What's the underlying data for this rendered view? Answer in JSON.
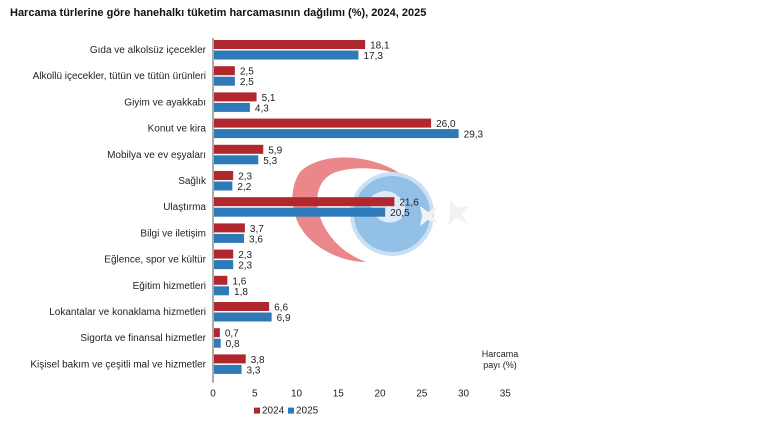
{
  "header": {
    "title": "Harcama türlerine göre hanehalkı tüketim harcamasının dağılımı (%), 2024, 2025"
  },
  "chart_data": {
    "type": "bar",
    "orientation": "horizontal",
    "categories": [
      "Gıda ve alkolsüz içecekler",
      "Alkollü içecekler, tütün ve tütün ürünleri",
      "Giyim ve ayakkabı",
      "Konut ve kira",
      "Mobilya ve ev eşyaları",
      "Sağlık",
      "Ulaştırma",
      "Bilgi ve iletişim",
      "Eğlence, spor ve kültür",
      "Eğitim hizmetleri",
      "Lokantalar ve konaklama hizmetleri",
      "Sigorta ve finansal hizmetler",
      "Kişisel bakım ve çeşitli mal ve hizmetler"
    ],
    "series": [
      {
        "name": "2024",
        "color": "#b0282e",
        "values": [
          18.1,
          2.5,
          5.1,
          26.0,
          5.9,
          2.3,
          21.6,
          3.7,
          2.3,
          1.6,
          6.6,
          0.7,
          3.8
        ],
        "labels": [
          "18,1",
          "2,5",
          "5,1",
          "26,0",
          "5,9",
          "2,3",
          "21,6",
          "3,7",
          "2,3",
          "1,6",
          "6,6",
          "0,7",
          "3,8"
        ]
      },
      {
        "name": "2025",
        "color": "#2e7ab8",
        "values": [
          17.3,
          2.5,
          4.3,
          29.3,
          5.3,
          2.2,
          20.5,
          3.6,
          2.3,
          1.8,
          6.9,
          0.8,
          3.3
        ],
        "labels": [
          "17,3",
          "2,5",
          "4,3",
          "29,3",
          "5,3",
          "2,2",
          "20,5",
          "3,6",
          "2,3",
          "1,8",
          "6,9",
          "0,8",
          "3,3"
        ]
      }
    ],
    "xlim": [
      0,
      35
    ],
    "xticks": [
      "0",
      "5",
      "10",
      "15",
      "20",
      "25",
      "30",
      "35"
    ],
    "xlabel_line1": "Harcama",
    "xlabel_line2": "payı (%)",
    "legend_position": "bottom",
    "grid": false
  }
}
